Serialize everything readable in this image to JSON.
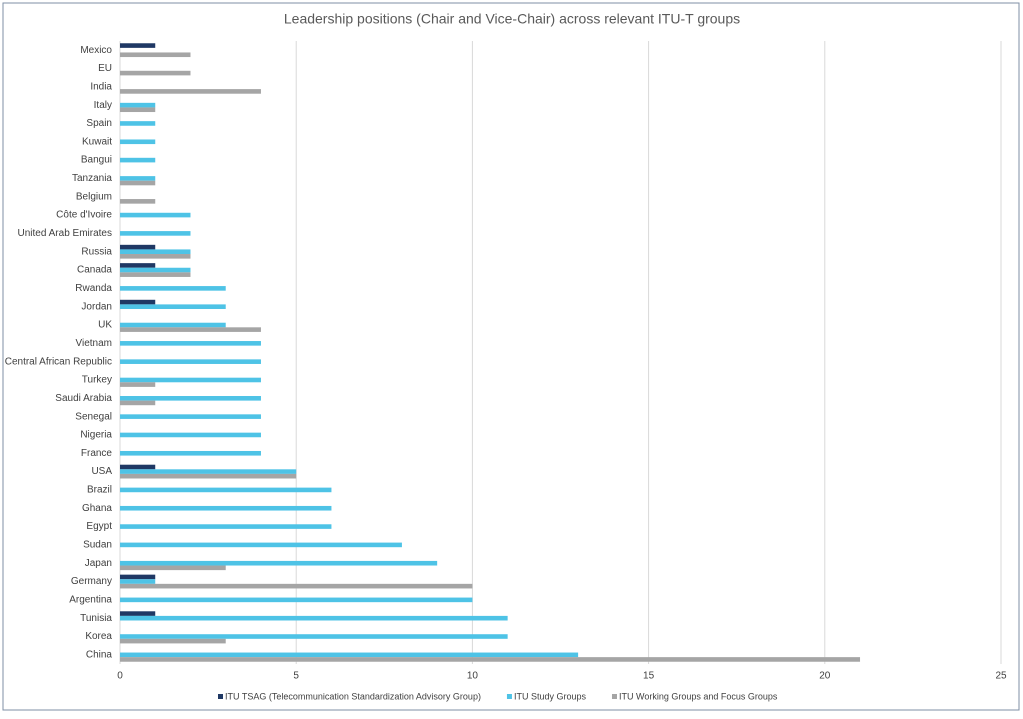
{
  "chart_data": {
    "type": "hbar",
    "title": "Leadership positions (Chair and Vice-Chair) across relevant ITU-T groups",
    "categories": [
      "Mexico",
      "EU",
      "India",
      "Italy",
      "Spain",
      "Kuwait",
      "Bangui",
      "Tanzania",
      "Belgium",
      "Côte d'Ivoire",
      "United Arab Emirates",
      "Russia",
      "Canada",
      "Rwanda",
      "Jordan",
      "UK",
      "Vietnam",
      "Central African Republic",
      "Turkey",
      "Saudi Arabia",
      "Senegal",
      "Nigeria",
      "France",
      "USA",
      "Brazil",
      "Ghana",
      "Egypt",
      "Sudan",
      "Japan",
      "Germany",
      "Argentina",
      "Tunisia",
      "Korea",
      "China"
    ],
    "series": [
      {
        "name": "ITU TSAG (Telecommunication Standardization Advisory Group)",
        "color": "#1f3864",
        "values": [
          1,
          0,
          0,
          0,
          0,
          0,
          0,
          0,
          0,
          0,
          0,
          1,
          1,
          0,
          1,
          0,
          0,
          0,
          0,
          0,
          0,
          0,
          0,
          1,
          0,
          0,
          0,
          0,
          0,
          1,
          0,
          1,
          0,
          0
        ]
      },
      {
        "name": "ITU Study Groups",
        "color": "#4ec3e6",
        "values": [
          0,
          0,
          0,
          1,
          1,
          1,
          1,
          1,
          0,
          2,
          2,
          2,
          2,
          3,
          3,
          3,
          4,
          4,
          4,
          4,
          4,
          4,
          4,
          5,
          6,
          6,
          6,
          8,
          9,
          1,
          10,
          11,
          11,
          13
        ]
      },
      {
        "name": "ITU Working Groups and Focus Groups",
        "color": "#a5a5a5",
        "values": [
          2,
          2,
          4,
          1,
          0,
          0,
          0,
          1,
          1,
          0,
          0,
          2,
          2,
          0,
          0,
          4,
          0,
          0,
          1,
          1,
          0,
          0,
          0,
          5,
          0,
          0,
          0,
          0,
          3,
          10,
          0,
          0,
          3,
          21
        ]
      }
    ],
    "xlim": [
      0,
      25
    ],
    "xticks": [
      0,
      5,
      10,
      15,
      20,
      25
    ],
    "grid": true
  }
}
